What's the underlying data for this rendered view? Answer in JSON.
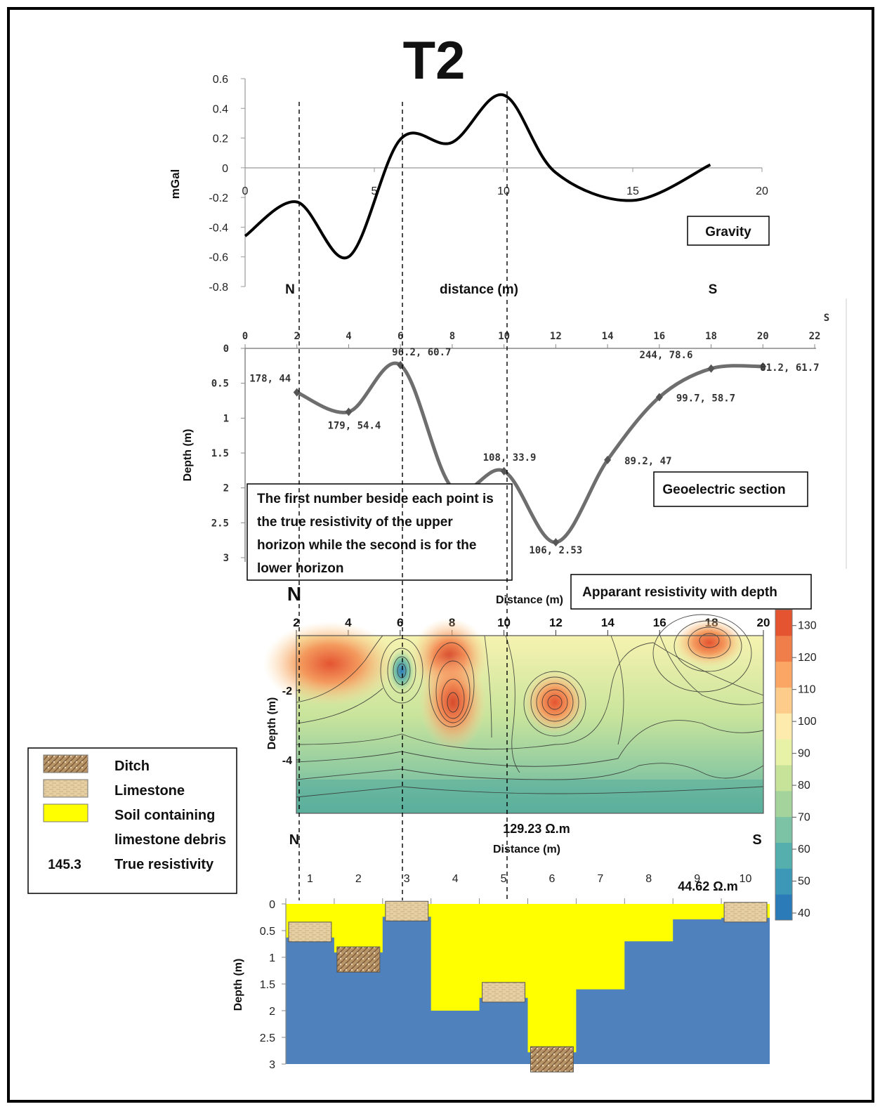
{
  "title": "T2",
  "gravity": {
    "label": "Gravity",
    "ylabel": "mGal",
    "xlabel": "distance (m)",
    "north": "N",
    "south": "S",
    "yticks": [
      "0.6",
      "0.4",
      "0.2",
      "0",
      "-0.2",
      "-0.4",
      "-0.6",
      "-0.8"
    ],
    "xticks": [
      "0",
      "5",
      "10",
      "15",
      "20"
    ]
  },
  "geoelectric": {
    "label": "Geoelectric section",
    "ylabel": "Depth (m)",
    "south": "S",
    "xticks": [
      "0",
      "2",
      "4",
      "6",
      "8",
      "10",
      "12",
      "14",
      "16",
      "18",
      "20",
      "22"
    ],
    "yticks": [
      "0",
      "0.5",
      "1",
      "1.5",
      "2",
      "2.5",
      "3"
    ],
    "note": [
      "The first number beside each point is",
      "the true resistivity of the upper",
      "horizon while the second is for the",
      "lower horizon"
    ],
    "point_labels": [
      "178, 44",
      "179, 54.4",
      "96.2, 60.7",
      "108, 33.9",
      "106, 2.53",
      "89.2, 47",
      "99.7, 58.7",
      "244, 78.6",
      "81.2, 61.7"
    ]
  },
  "apparent": {
    "label": "Apparant resistivity with depth",
    "xlabel": "Distance (m)",
    "ylabel": "Depth (m)",
    "north": "N",
    "xticks": [
      "2",
      "4",
      "6",
      "8",
      "10",
      "12",
      "14",
      "16",
      "18",
      "20"
    ],
    "yticks": [
      "-2",
      "-4"
    ],
    "colorbar_ticks": [
      "130",
      "120",
      "110",
      "100",
      "90",
      "80",
      "70",
      "60",
      "50",
      "40"
    ],
    "colorbar_colors": [
      "#2b7bb9",
      "#3c98b6",
      "#55b0ad",
      "#7cc3a5",
      "#a4d49c",
      "#c7e39a",
      "#e8f2a6",
      "#fdebae",
      "#fdcc8a",
      "#fca665",
      "#f07e4b",
      "#e45431"
    ]
  },
  "model": {
    "north": "N",
    "south": "S",
    "xlabel": "Distance (m)",
    "ylabel": "Depth (m)",
    "xticks": [
      "1",
      "2",
      "3",
      "4",
      "5",
      "6",
      "7",
      "8",
      "9",
      "10"
    ],
    "yticks": [
      "0",
      "0.5",
      "1",
      "1.5",
      "2",
      "2.5",
      "3"
    ],
    "annotation_max": "129.23 Ω.m",
    "annotation_min": "44.62 Ω.m",
    "colors": {
      "soil": "#ffff00",
      "bedrock": "#4f81bd",
      "limestone": "#e6cfa2",
      "ditch": "#a8865a"
    }
  },
  "legend": {
    "items": [
      {
        "label": "Ditch",
        "swatch": "ditch"
      },
      {
        "label": "Limestone",
        "swatch": "limestone"
      },
      {
        "label": "Soil containing",
        "swatch": "soil"
      },
      {
        "label": "limestone debris",
        "swatch": "none"
      },
      {
        "label": "True resistivity",
        "swatch": "text",
        "swatch_text": "145.3"
      }
    ]
  },
  "chart_data": [
    {
      "type": "line",
      "title": "Gravity",
      "xlabel": "distance (m)",
      "ylabel": "mGal",
      "xlim": [
        0,
        20
      ],
      "ylim": [
        -0.8,
        0.6
      ],
      "series": [
        {
          "x": [
            0,
            2,
            4,
            6,
            8,
            10,
            12,
            15,
            18
          ],
          "values": [
            -0.46,
            -0.23,
            -0.6,
            0.19,
            0.17,
            0.49,
            -0.03,
            -0.22,
            0.02
          ]
        }
      ]
    },
    {
      "type": "line",
      "title": "Geoelectric section",
      "ylabel": "Depth (m)",
      "xlim": [
        0,
        22
      ],
      "ylim": [
        0,
        3
      ],
      "series": [
        {
          "x": [
            2,
            4,
            6,
            8,
            10,
            12,
            14,
            16,
            18,
            20
          ],
          "values": [
            0.63,
            0.91,
            0.24,
            2.0,
            1.76,
            2.78,
            1.6,
            0.7,
            0.29,
            0.26
          ]
        }
      ]
    },
    {
      "type": "heatmap",
      "title": "Apparant resistivity with depth",
      "xlabel": "Distance (m)",
      "ylabel": "Depth (m)",
      "xlim": [
        2,
        20
      ],
      "color_range": [
        40,
        135
      ]
    },
    {
      "type": "area",
      "xlabel": "Distance (m)",
      "ylabel": "Depth (m)",
      "categories": [
        "1",
        "2",
        "3",
        "4",
        "5",
        "6",
        "7",
        "8",
        "9",
        "10"
      ],
      "series": [
        {
          "values": [
            0.63,
            0.91,
            0.24,
            2.0,
            1.76,
            2.78,
            1.6,
            0.7,
            0.29,
            0.26
          ]
        },
        {
          "values": [
            0.63,
            0.91,
            0.24,
            2.0,
            1.76,
            2.78,
            1.6,
            0.7,
            0.29,
            0.26
          ]
        }
      ]
    }
  ]
}
